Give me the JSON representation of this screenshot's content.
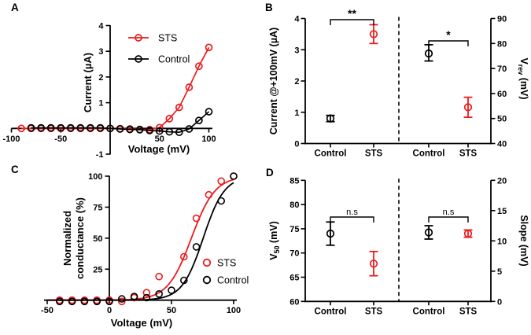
{
  "figure": {
    "background": "#ffffff"
  },
  "colors": {
    "sts": "#ED1B1E",
    "control": "#000000"
  },
  "chart_data": [
    {
      "panel": "A",
      "type": "line",
      "xlabel": "Voltage (mV)",
      "ylabel": "Current (µA)",
      "xlim": [
        -100,
        100
      ],
      "ylim": [
        -1,
        4
      ],
      "x_ticks": [
        -100,
        -50,
        50,
        100
      ],
      "y_ticks": [
        -1,
        1,
        2,
        3,
        4
      ],
      "legend_position": "upper-left-of-plot",
      "series": [
        {
          "name": "STS",
          "color": "#ED1B1E",
          "points": [
            [
              -90,
              0
            ],
            [
              -80,
              0
            ],
            [
              -70,
              0
            ],
            [
              -60,
              0
            ],
            [
              -50,
              0
            ],
            [
              -40,
              0
            ],
            [
              -30,
              0
            ],
            [
              -20,
              0
            ],
            [
              -10,
              0
            ],
            [
              0,
              0
            ],
            [
              10,
              -0.01
            ],
            [
              20,
              -0.02
            ],
            [
              30,
              -0.04
            ],
            [
              40,
              -0.05
            ],
            [
              50,
              0.03
            ],
            [
              60,
              0.38
            ],
            [
              70,
              0.82
            ],
            [
              80,
              1.6
            ],
            [
              90,
              2.42
            ],
            [
              100,
              3.15
            ]
          ]
        },
        {
          "name": "Control",
          "color": "#000000",
          "points": [
            [
              -80,
              0.02
            ],
            [
              -70,
              0.02
            ],
            [
              -60,
              0.02
            ],
            [
              -50,
              0.02
            ],
            [
              -40,
              0.02
            ],
            [
              -30,
              0.02
            ],
            [
              -20,
              0.02
            ],
            [
              -10,
              0.02
            ],
            [
              0,
              0
            ],
            [
              10,
              -0.02
            ],
            [
              20,
              -0.04
            ],
            [
              30,
              -0.05
            ],
            [
              40,
              -0.08
            ],
            [
              50,
              -0.1
            ],
            [
              60,
              -0.13
            ],
            [
              70,
              -0.15
            ],
            [
              80,
              -0.02
            ],
            [
              90,
              0.31
            ],
            [
              100,
              0.65
            ]
          ]
        }
      ]
    },
    {
      "panel": "B",
      "type": "dot-errorbar",
      "left": {
        "ylabel": "Current @+100mV (µA)",
        "lim": [
          0,
          4
        ],
        "ticks": [
          0,
          1,
          2,
          3,
          4
        ],
        "groups": [
          {
            "label": "Control",
            "color": "#000000",
            "mean": 0.8,
            "lo": 0.7,
            "hi": 0.9
          },
          {
            "label": "STS",
            "color": "#ED1B1E",
            "mean": 3.5,
            "lo": 3.2,
            "hi": 3.8
          }
        ],
        "sig": "**"
      },
      "right": {
        "ylabel_parts": {
          "pre": "V",
          "sub": "rev",
          "post": " (mV)"
        },
        "lim": [
          40,
          90
        ],
        "ticks": [
          40,
          50,
          60,
          70,
          80,
          90
        ],
        "groups": [
          {
            "label": "Control",
            "color": "#000000",
            "mean": 76,
            "lo": 73,
            "hi": 79.5
          },
          {
            "label": "STS",
            "color": "#ED1B1E",
            "mean": 54.5,
            "lo": 50.5,
            "hi": 58.5
          }
        ],
        "sig": "*"
      }
    },
    {
      "panel": "C",
      "type": "scatter-fit",
      "xlabel": "Voltage (mV)",
      "ylabel_lines": [
        "Normalized",
        "conductance (%)"
      ],
      "xlim": [
        -50,
        100
      ],
      "ylim": [
        0,
        100
      ],
      "x_ticks": [
        -50,
        0,
        50,
        100
      ],
      "y_ticks": [
        25,
        50,
        75,
        100
      ],
      "legend_position": "right-middle",
      "series": [
        {
          "name": "STS",
          "color": "#ED1B1E",
          "fit": "boltzmann",
          "v50": 66,
          "slope": 9.5,
          "points": [
            [
              -40,
              0
            ],
            [
              -30,
              0
            ],
            [
              -20,
              0
            ],
            [
              -10,
              0
            ],
            [
              0,
              0
            ],
            [
              10,
              -1
            ],
            [
              20,
              2
            ],
            [
              30,
              6
            ],
            [
              40,
              19
            ],
            [
              60,
              35
            ],
            [
              70,
              66
            ],
            [
              80,
              85
            ],
            [
              90,
              96
            ],
            [
              100,
              100
            ]
          ]
        },
        {
          "name": "Control",
          "color": "#000000",
          "fit": "boltzmann",
          "v50": 75.5,
          "slope": 8.5,
          "points": [
            [
              -40,
              -1
            ],
            [
              -30,
              -1
            ],
            [
              -20,
              -1
            ],
            [
              -10,
              -1
            ],
            [
              0,
              -1
            ],
            [
              10,
              1
            ],
            [
              20,
              3
            ],
            [
              30,
              2
            ],
            [
              40,
              5
            ],
            [
              50,
              8
            ],
            [
              60,
              16
            ],
            [
              70,
              43
            ],
            [
              90,
              80
            ],
            [
              100,
              100
            ]
          ]
        }
      ]
    },
    {
      "panel": "D",
      "type": "dot-errorbar",
      "left": {
        "ylabel_parts": {
          "pre": "V",
          "sub": "50",
          "post": " (mV)"
        },
        "lim": [
          60,
          85
        ],
        "ticks": [
          60,
          65,
          70,
          75,
          80,
          85
        ],
        "groups": [
          {
            "label": "Control",
            "color": "#000000",
            "mean": 74,
            "lo": 71.6,
            "hi": 76.4
          },
          {
            "label": "STS",
            "color": "#ED1B1E",
            "mean": 67.8,
            "lo": 65.3,
            "hi": 70.3
          }
        ],
        "sig": "n.s"
      },
      "right": {
        "ylabel": "Slope (mV)",
        "lim": [
          0,
          20
        ],
        "ticks": [
          0,
          5,
          10,
          15,
          20
        ],
        "groups": [
          {
            "label": "Control",
            "color": "#000000",
            "mean": 11.4,
            "lo": 10.3,
            "hi": 12.5
          },
          {
            "label": "STS",
            "color": "#ED1B1E",
            "mean": 11.2,
            "lo": 10.6,
            "hi": 11.8
          }
        ],
        "sig": "n.s"
      }
    }
  ]
}
